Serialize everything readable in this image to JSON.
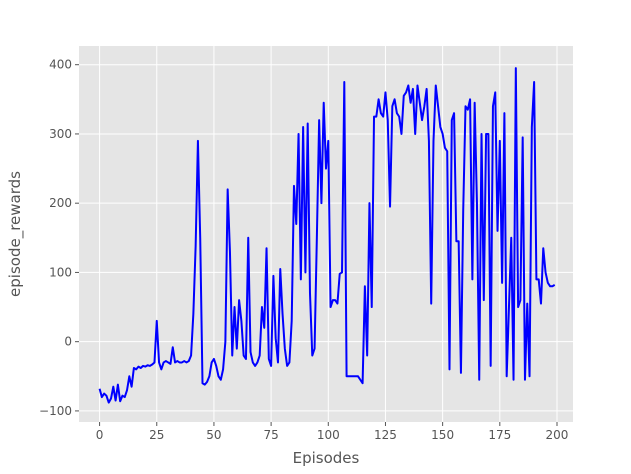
{
  "chart_data": {
    "type": "line",
    "x_label": "Episodes",
    "y_label": "episode_rewards",
    "x": [
      0,
      1,
      2,
      3,
      4,
      5,
      6,
      7,
      8,
      9,
      10,
      11,
      12,
      13,
      14,
      15,
      16,
      17,
      18,
      19,
      20,
      21,
      22,
      23,
      24,
      25,
      26,
      27,
      28,
      29,
      30,
      31,
      32,
      33,
      34,
      35,
      36,
      37,
      38,
      39,
      40,
      41,
      42,
      43,
      44,
      45,
      46,
      47,
      48,
      49,
      50,
      51,
      52,
      53,
      54,
      55,
      56,
      57,
      58,
      59,
      60,
      61,
      62,
      63,
      64,
      65,
      66,
      67,
      68,
      69,
      70,
      71,
      72,
      73,
      74,
      75,
      76,
      77,
      78,
      79,
      80,
      81,
      82,
      83,
      84,
      85,
      86,
      87,
      88,
      89,
      90,
      91,
      92,
      93,
      94,
      95,
      96,
      97,
      98,
      99,
      100,
      101,
      102,
      103,
      104,
      105,
      106,
      107,
      108,
      109,
      110,
      111,
      112,
      113,
      114,
      115,
      116,
      117,
      118,
      119,
      120,
      121,
      122,
      123,
      124,
      125,
      126,
      127,
      128,
      129,
      130,
      131,
      132,
      133,
      134,
      135,
      136,
      137,
      138,
      139,
      140,
      141,
      142,
      143,
      144,
      145,
      146,
      147,
      148,
      149,
      150,
      151,
      152,
      153,
      154,
      155,
      156,
      157,
      158,
      159,
      160,
      161,
      162,
      163,
      164,
      165,
      166,
      167,
      168,
      169,
      170,
      171,
      172,
      173,
      174,
      175,
      176,
      177,
      178,
      179,
      180,
      181,
      182,
      183,
      184,
      185,
      186,
      187,
      188,
      189,
      190,
      191,
      192,
      193,
      194,
      195,
      196,
      197,
      198,
      199
    ],
    "series": [
      {
        "name": "episode_rewards",
        "color": "#0000ff",
        "values": [
          -68,
          -80,
          -75,
          -78,
          -88,
          -82,
          -65,
          -85,
          -62,
          -86,
          -78,
          -80,
          -70,
          -50,
          -65,
          -38,
          -40,
          -36,
          -38,
          -35,
          -36,
          -34,
          -35,
          -33,
          -30,
          30,
          -30,
          -40,
          -30,
          -28,
          -30,
          -32,
          -8,
          -30,
          -28,
          -30,
          -30,
          -28,
          -30,
          -28,
          -20,
          40,
          138,
          290,
          150,
          -60,
          -62,
          -58,
          -50,
          -30,
          -25,
          -35,
          -50,
          -55,
          -40,
          0,
          220,
          130,
          -20,
          50,
          -10,
          60,
          30,
          -20,
          -25,
          150,
          -15,
          -30,
          -35,
          -30,
          -20,
          50,
          20,
          135,
          -25,
          -35,
          95,
          5,
          -30,
          105,
          40,
          -10,
          -35,
          -30,
          30,
          225,
          170,
          300,
          90,
          310,
          100,
          315,
          70,
          -20,
          -10,
          150,
          320,
          200,
          345,
          250,
          290,
          50,
          60,
          60,
          55,
          98,
          100,
          375,
          -50,
          -50,
          -50,
          -50,
          -50,
          -50,
          -55,
          -60,
          80,
          -20,
          200,
          50,
          325,
          325,
          350,
          330,
          325,
          360,
          320,
          195,
          340,
          350,
          330,
          325,
          300,
          355,
          360,
          370,
          345,
          365,
          300,
          370,
          345,
          320,
          340,
          365,
          290,
          55,
          290,
          370,
          340,
          310,
          300,
          280,
          275,
          -40,
          320,
          330,
          145,
          145,
          -45,
          190,
          340,
          335,
          350,
          90,
          345,
          200,
          -55,
          300,
          60,
          300,
          300,
          -35,
          340,
          360,
          160,
          290,
          85,
          330,
          -50,
          50,
          150,
          -55,
          395,
          50,
          60,
          295,
          -55,
          55,
          -50,
          310,
          375,
          90,
          90,
          55,
          135,
          100,
          85,
          80,
          80,
          82
        ]
      }
    ],
    "xlim": [
      -9,
      207
    ],
    "ylim": [
      -116,
      427
    ],
    "xticks": [
      0,
      25,
      50,
      75,
      100,
      125,
      150,
      175,
      200
    ],
    "yticks": [
      {
        "value": -100,
        "label": "−100"
      },
      0,
      100,
      200,
      300,
      400
    ],
    "grid": true
  }
}
